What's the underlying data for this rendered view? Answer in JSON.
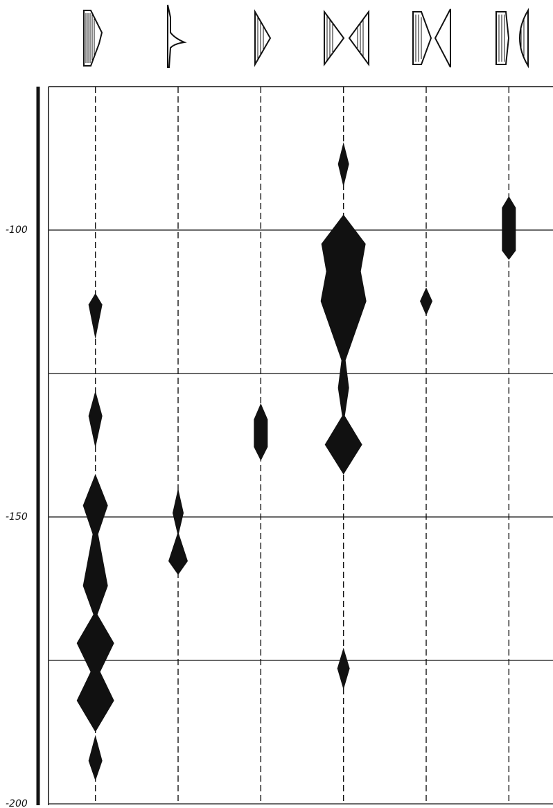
{
  "chart_data": {
    "type": "seriation",
    "categories": [
      null,
      null,
      null,
      null,
      null,
      null
    ],
    "ylim": [
      -200,
      -75
    ],
    "yticks": [
      -100,
      {
        "value": -125,
        "label": null
      },
      -150,
      {
        "value": -175,
        "label": null
      },
      -200
    ],
    "grid": true,
    "color": "#111",
    "columns": [
      {
        "shapes": [
          {
            "depth": [
              -111,
              -113,
              -119
            ],
            "width": [
              0,
              20,
              0
            ]
          },
          {
            "depth": [
              -128,
              -132.4,
              -138
            ],
            "width": [
              0,
              20,
              0
            ]
          },
          {
            "depth": [
              -142.5,
              -148,
              -153,
              -162,
              -167,
              -172,
              -177,
              -182,
              -187.5
            ],
            "width": [
              0,
              36,
              8,
              36,
              6,
              54,
              14,
              54,
              0
            ]
          },
          {
            "depth": [
              -188,
              -192.5,
              -196
            ],
            "width": [
              0,
              20,
              0
            ]
          }
        ]
      },
      {
        "shapes": [
          {
            "depth": [
              -145,
              -149.3,
              -152.9,
              -157.7,
              -160.1
            ],
            "width": [
              0,
              16,
              2,
              28,
              0
            ]
          }
        ]
      },
      {
        "shapes": [
          {
            "depth": [
              -130.2,
              -133,
              -137.8,
              -140.2
            ],
            "width": [
              0,
              20,
              20,
              0
            ]
          }
        ]
      },
      {
        "shapes": [
          {
            "depth": [
              -84.7,
              -88.5,
              -92.5
            ],
            "width": [
              0,
              16,
              0
            ]
          },
          {
            "depth": [
              -97.3,
              -102.4,
              -107.2,
              -112.4,
              -122.7,
              -127.5,
              -132.4,
              -137.4,
              -142.6
            ],
            "width": [
              0,
              64,
              50,
              66,
              6,
              16,
              4,
              54,
              0
            ]
          },
          {
            "depth": [
              -172.8,
              -176.4,
              -180.1
            ],
            "width": [
              0,
              18,
              0
            ]
          }
        ]
      },
      {
        "shapes": [
          {
            "depth": [
              -110,
              -112.4,
              -114.9
            ],
            "width": [
              0,
              18,
              0
            ]
          }
        ]
      },
      {
        "shapes": [
          {
            "depth": [
              -94.1,
              -96.1,
              -103.6,
              -105.2
            ],
            "width": [
              0,
              20,
              20,
              0
            ]
          }
        ]
      }
    ]
  }
}
